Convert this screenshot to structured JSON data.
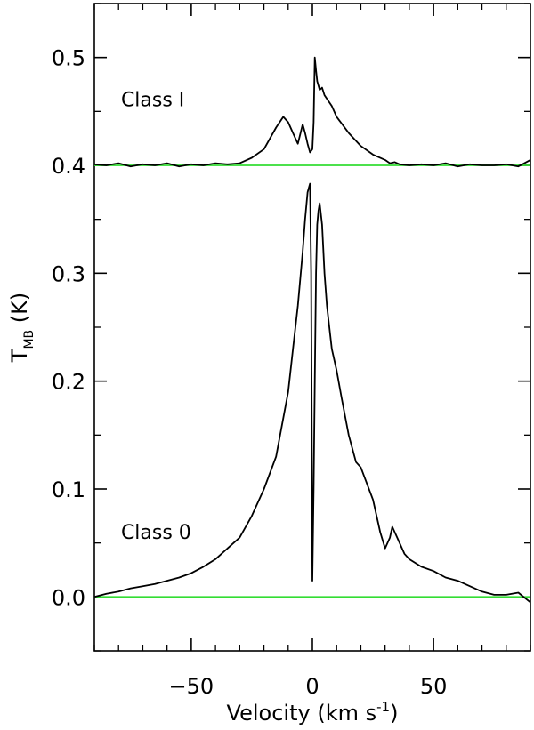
{
  "chart_data": {
    "type": "line",
    "title": "",
    "xlabel": {
      "base": "Velocity (km s",
      "sup": "-1",
      "close": ")"
    },
    "ylabel": {
      "base": "T",
      "sub": "MB",
      "rest": " (K)"
    },
    "xlim": [
      -90,
      90
    ],
    "ylim": [
      -0.05,
      0.55
    ],
    "xticks": [
      -50,
      0,
      50
    ],
    "xtick_labels": [
      "−50",
      "0",
      "50"
    ],
    "yticks": [
      0.0,
      0.1,
      0.2,
      0.3,
      0.4,
      0.5
    ],
    "ytick_labels": [
      "0.0",
      "0.1",
      "0.2",
      "0.3",
      "0.4",
      "0.5"
    ],
    "grid": false,
    "baselines": [
      {
        "y": 0.0,
        "color": "#33dd33"
      },
      {
        "y": 0.4,
        "color": "#33dd33"
      }
    ],
    "annotations": [
      {
        "text": "Class I",
        "x": -79,
        "y": 0.455
      },
      {
        "text": "Class 0",
        "x": -79,
        "y": 0.054
      }
    ],
    "series": [
      {
        "color": "#000000",
        "x": [
          -90,
          -85,
          -80,
          -75,
          -70,
          -65,
          -60,
          -55,
          -50,
          -45,
          -40,
          -35,
          -30,
          -25,
          -20,
          -15,
          -12,
          -10,
          -8,
          -6,
          -4,
          -3,
          -2,
          -1,
          0,
          0.5,
          1,
          1.5,
          2,
          3,
          4,
          5,
          8,
          10,
          15,
          20,
          25,
          30,
          32,
          34,
          36,
          40,
          45,
          50,
          55,
          60,
          65,
          70,
          75,
          80,
          85,
          90
        ],
        "y": [
          0.401,
          0.4,
          0.402,
          0.399,
          0.401,
          0.4,
          0.402,
          0.399,
          0.401,
          0.4,
          0.402,
          0.401,
          0.402,
          0.407,
          0.415,
          0.435,
          0.445,
          0.44,
          0.43,
          0.42,
          0.438,
          0.43,
          0.42,
          0.412,
          0.415,
          0.44,
          0.5,
          0.488,
          0.478,
          0.47,
          0.472,
          0.465,
          0.455,
          0.445,
          0.43,
          0.418,
          0.41,
          0.405,
          0.402,
          0.403,
          0.401,
          0.4,
          0.401,
          0.4,
          0.402,
          0.399,
          0.401,
          0.4,
          0.4,
          0.401,
          0.399,
          0.405
        ]
      },
      {
        "color": "#000000",
        "x": [
          -90,
          -85,
          -80,
          -75,
          -70,
          -65,
          -60,
          -55,
          -50,
          -45,
          -40,
          -35,
          -30,
          -25,
          -20,
          -15,
          -10,
          -8,
          -6,
          -4,
          -3,
          -2,
          -1,
          -0.5,
          0,
          0.5,
          1,
          1.5,
          2,
          2.5,
          3,
          4,
          5,
          6,
          8,
          10,
          12,
          15,
          18,
          20,
          25,
          28,
          30,
          32,
          33,
          35,
          38,
          40,
          45,
          50,
          55,
          60,
          65,
          70,
          75,
          80,
          85,
          90
        ],
        "y": [
          0.0,
          0.003,
          0.005,
          0.008,
          0.01,
          0.012,
          0.015,
          0.018,
          0.022,
          0.028,
          0.035,
          0.045,
          0.055,
          0.075,
          0.1,
          0.13,
          0.19,
          0.23,
          0.27,
          0.32,
          0.35,
          0.375,
          0.383,
          0.3,
          0.015,
          0.1,
          0.2,
          0.3,
          0.345,
          0.358,
          0.365,
          0.345,
          0.3,
          0.27,
          0.23,
          0.21,
          0.185,
          0.15,
          0.125,
          0.12,
          0.09,
          0.06,
          0.045,
          0.055,
          0.065,
          0.055,
          0.04,
          0.035,
          0.028,
          0.024,
          0.018,
          0.015,
          0.01,
          0.005,
          0.002,
          0.002,
          0.004,
          -0.005
        ]
      }
    ]
  }
}
